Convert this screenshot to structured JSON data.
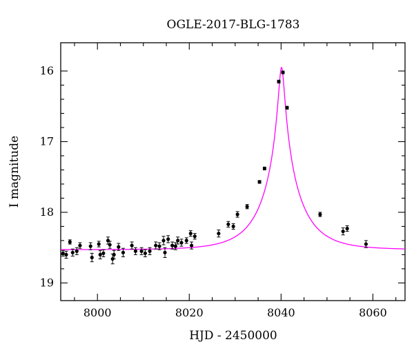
{
  "chart_data": {
    "type": "scatter",
    "title": "OGLE-2017-BLG-1783",
    "xlabel": "HJD - 2450000",
    "ylabel": "I magnitude",
    "xlim": [
      7992,
      8067
    ],
    "ylim": [
      19.25,
      15.6
    ],
    "y_inverted": true,
    "x_ticks": [
      8000,
      8020,
      8040,
      8060
    ],
    "y_ticks": [
      16,
      17,
      18,
      19
    ],
    "grid": false,
    "model_color": "#ff00ff",
    "point_color": "#000000",
    "model": {
      "baseline": 18.53,
      "peak_mag": 15.95,
      "t0": 8040.1,
      "u0": 0.075,
      "tE": 8.0
    },
    "series": [
      {
        "x": [
          7992.5,
          7993.2,
          7994.0,
          7994.6,
          7995.5,
          7996.2,
          7998.5,
          7998.8,
          8000.3,
          8000.6,
          8001.3,
          8002.3,
          8002.7,
          8003.3,
          8003.6,
          8004.6,
          8005.6,
          8007.5,
          8008.3,
          8009.6,
          8010.4,
          8011.4,
          8012.7,
          8013.5,
          8014.4,
          8014.7,
          8015.4,
          8016.3,
          8017.0,
          8017.5,
          8018.3,
          8019.4,
          8020.3,
          8020.5,
          8021.2,
          8026.4,
          8028.5,
          8029.6,
          8030.5,
          8032.6,
          8035.3,
          8036.4,
          8039.5,
          8040.4,
          8041.3,
          8048.5,
          8053.5,
          8054.4,
          8058.5
        ],
        "y": [
          18.58,
          18.6,
          18.42,
          18.57,
          18.55,
          18.47,
          18.48,
          18.64,
          18.45,
          18.6,
          18.58,
          18.4,
          18.46,
          18.66,
          18.6,
          18.49,
          18.57,
          18.47,
          18.55,
          18.55,
          18.58,
          18.55,
          18.47,
          18.48,
          18.4,
          18.57,
          18.38,
          18.47,
          18.48,
          18.4,
          18.43,
          18.4,
          18.3,
          18.47,
          18.34,
          18.3,
          18.17,
          18.2,
          18.03,
          17.92,
          17.57,
          17.38,
          16.15,
          16.02,
          16.52,
          18.03,
          18.27,
          18.23,
          18.45
        ],
        "err": [
          0.04,
          0.05,
          0.03,
          0.05,
          0.05,
          0.04,
          0.05,
          0.06,
          0.04,
          0.06,
          0.05,
          0.05,
          0.05,
          0.07,
          0.06,
          0.05,
          0.06,
          0.05,
          0.05,
          0.05,
          0.05,
          0.05,
          0.05,
          0.05,
          0.06,
          0.07,
          0.05,
          0.05,
          0.05,
          0.05,
          0.05,
          0.04,
          0.04,
          0.05,
          0.04,
          0.05,
          0.04,
          0.04,
          0.04,
          0.03,
          0.02,
          0.02,
          0.02,
          0.02,
          0.02,
          0.03,
          0.05,
          0.04,
          0.05
        ]
      }
    ]
  }
}
